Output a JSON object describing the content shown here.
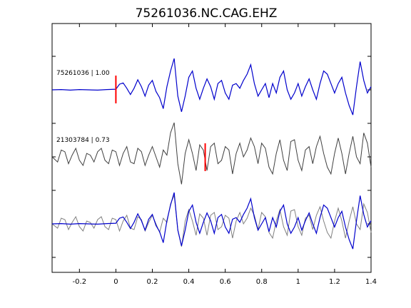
{
  "chart_data": {
    "type": "line",
    "title": "75261036.NC.CAG.EHZ",
    "xlabel": "",
    "ylabel": "",
    "xlim": [
      -0.35,
      1.4
    ],
    "x_ticks": [
      "-0.2",
      "0",
      "0.2",
      "0.4",
      "0.6",
      "0.8",
      "1",
      "1.2",
      "1.4"
    ],
    "x_tick_values": [
      -0.2,
      0,
      0.2,
      0.4,
      0.6,
      0.8,
      1.0,
      1.2,
      1.4
    ],
    "grid": false,
    "legend": "none",
    "traces": [
      {
        "label": "75261036 | 1.00",
        "color": "#0000cc",
        "pick_time": 0.0,
        "x": [
          -0.35,
          -0.3,
          -0.25,
          -0.2,
          -0.15,
          -0.1,
          -0.05,
          0.0,
          0.02,
          0.04,
          0.06,
          0.08,
          0.1,
          0.12,
          0.14,
          0.16,
          0.18,
          0.2,
          0.22,
          0.24,
          0.26,
          0.28,
          0.3,
          0.32,
          0.34,
          0.36,
          0.38,
          0.4,
          0.42,
          0.44,
          0.46,
          0.48,
          0.5,
          0.52,
          0.54,
          0.56,
          0.58,
          0.6,
          0.62,
          0.64,
          0.66,
          0.68,
          0.7,
          0.72,
          0.74,
          0.76,
          0.78,
          0.8,
          0.82,
          0.84,
          0.86,
          0.88,
          0.9,
          0.92,
          0.94,
          0.96,
          0.98,
          1.0,
          1.02,
          1.04,
          1.06,
          1.08,
          1.1,
          1.12,
          1.14,
          1.16,
          1.18,
          1.2,
          1.22,
          1.24,
          1.26,
          1.28,
          1.3,
          1.32,
          1.34,
          1.36,
          1.38,
          1.4
        ],
        "y": [
          0.0,
          0.01,
          -0.01,
          0.01,
          0.0,
          -0.01,
          0.01,
          0.02,
          0.18,
          0.22,
          0.05,
          -0.15,
          0.05,
          0.32,
          0.1,
          -0.2,
          0.15,
          0.3,
          -0.05,
          -0.25,
          -0.6,
          0.1,
          0.6,
          1.0,
          -0.2,
          -0.7,
          -0.2,
          0.4,
          0.6,
          0.05,
          -0.3,
          0.05,
          0.35,
          0.1,
          -0.3,
          0.2,
          0.3,
          -0.1,
          -0.3,
          0.15,
          0.2,
          0.05,
          0.3,
          0.5,
          0.8,
          0.2,
          -0.2,
          0.0,
          0.2,
          -0.25,
          0.2,
          -0.1,
          0.4,
          0.6,
          0.0,
          -0.3,
          -0.1,
          0.2,
          -0.2,
          0.1,
          0.35,
          0.0,
          -0.3,
          0.2,
          0.6,
          0.5,
          0.2,
          -0.1,
          0.2,
          0.4,
          -0.1,
          -0.5,
          -0.8,
          0.1,
          0.9,
          0.3,
          -0.1,
          0.1
        ]
      },
      {
        "label": "21303784 | 0.73",
        "color": "#404040",
        "pick_time": 0.49,
        "x": [
          -0.35,
          -0.32,
          -0.3,
          -0.28,
          -0.26,
          -0.24,
          -0.22,
          -0.2,
          -0.18,
          -0.16,
          -0.14,
          -0.12,
          -0.1,
          -0.08,
          -0.06,
          -0.04,
          -0.02,
          0.0,
          0.02,
          0.04,
          0.06,
          0.08,
          0.1,
          0.12,
          0.14,
          0.16,
          0.18,
          0.2,
          0.22,
          0.24,
          0.26,
          0.28,
          0.3,
          0.32,
          0.34,
          0.36,
          0.38,
          0.4,
          0.42,
          0.44,
          0.46,
          0.48,
          0.5,
          0.52,
          0.54,
          0.56,
          0.58,
          0.6,
          0.62,
          0.64,
          0.66,
          0.68,
          0.7,
          0.72,
          0.74,
          0.76,
          0.78,
          0.8,
          0.82,
          0.84,
          0.86,
          0.88,
          0.9,
          0.92,
          0.94,
          0.96,
          0.98,
          1.0,
          1.02,
          1.04,
          1.06,
          1.08,
          1.1,
          1.12,
          1.14,
          1.16,
          1.18,
          1.2,
          1.22,
          1.24,
          1.26,
          1.28,
          1.3,
          1.32,
          1.34,
          1.36,
          1.38,
          1.4
        ],
        "y": [
          0.0,
          -0.15,
          0.2,
          0.15,
          -0.2,
          0.05,
          0.25,
          -0.1,
          -0.25,
          0.1,
          0.05,
          -0.15,
          0.15,
          0.25,
          -0.1,
          -0.2,
          0.2,
          0.15,
          -0.25,
          0.1,
          0.3,
          -0.15,
          -0.2,
          0.25,
          0.15,
          -0.25,
          0.05,
          0.3,
          0.0,
          -0.3,
          0.2,
          0.05,
          0.7,
          1.0,
          -0.2,
          -0.8,
          0.1,
          0.5,
          0.1,
          -0.4,
          0.35,
          0.2,
          -0.4,
          0.3,
          0.4,
          -0.2,
          -0.1,
          0.3,
          0.2,
          -0.5,
          0.1,
          0.4,
          0.0,
          0.2,
          0.55,
          0.3,
          -0.2,
          0.4,
          0.25,
          -0.3,
          -0.5,
          0.1,
          0.5,
          -0.1,
          -0.4,
          0.45,
          0.5,
          -0.1,
          -0.4,
          0.2,
          0.3,
          -0.2,
          0.3,
          0.6,
          0.1,
          -0.3,
          -0.5,
          0.1,
          0.55,
          0.1,
          -0.5,
          0.1,
          0.6,
          0.0,
          -0.2,
          0.7,
          0.4,
          -0.3
        ]
      }
    ]
  }
}
